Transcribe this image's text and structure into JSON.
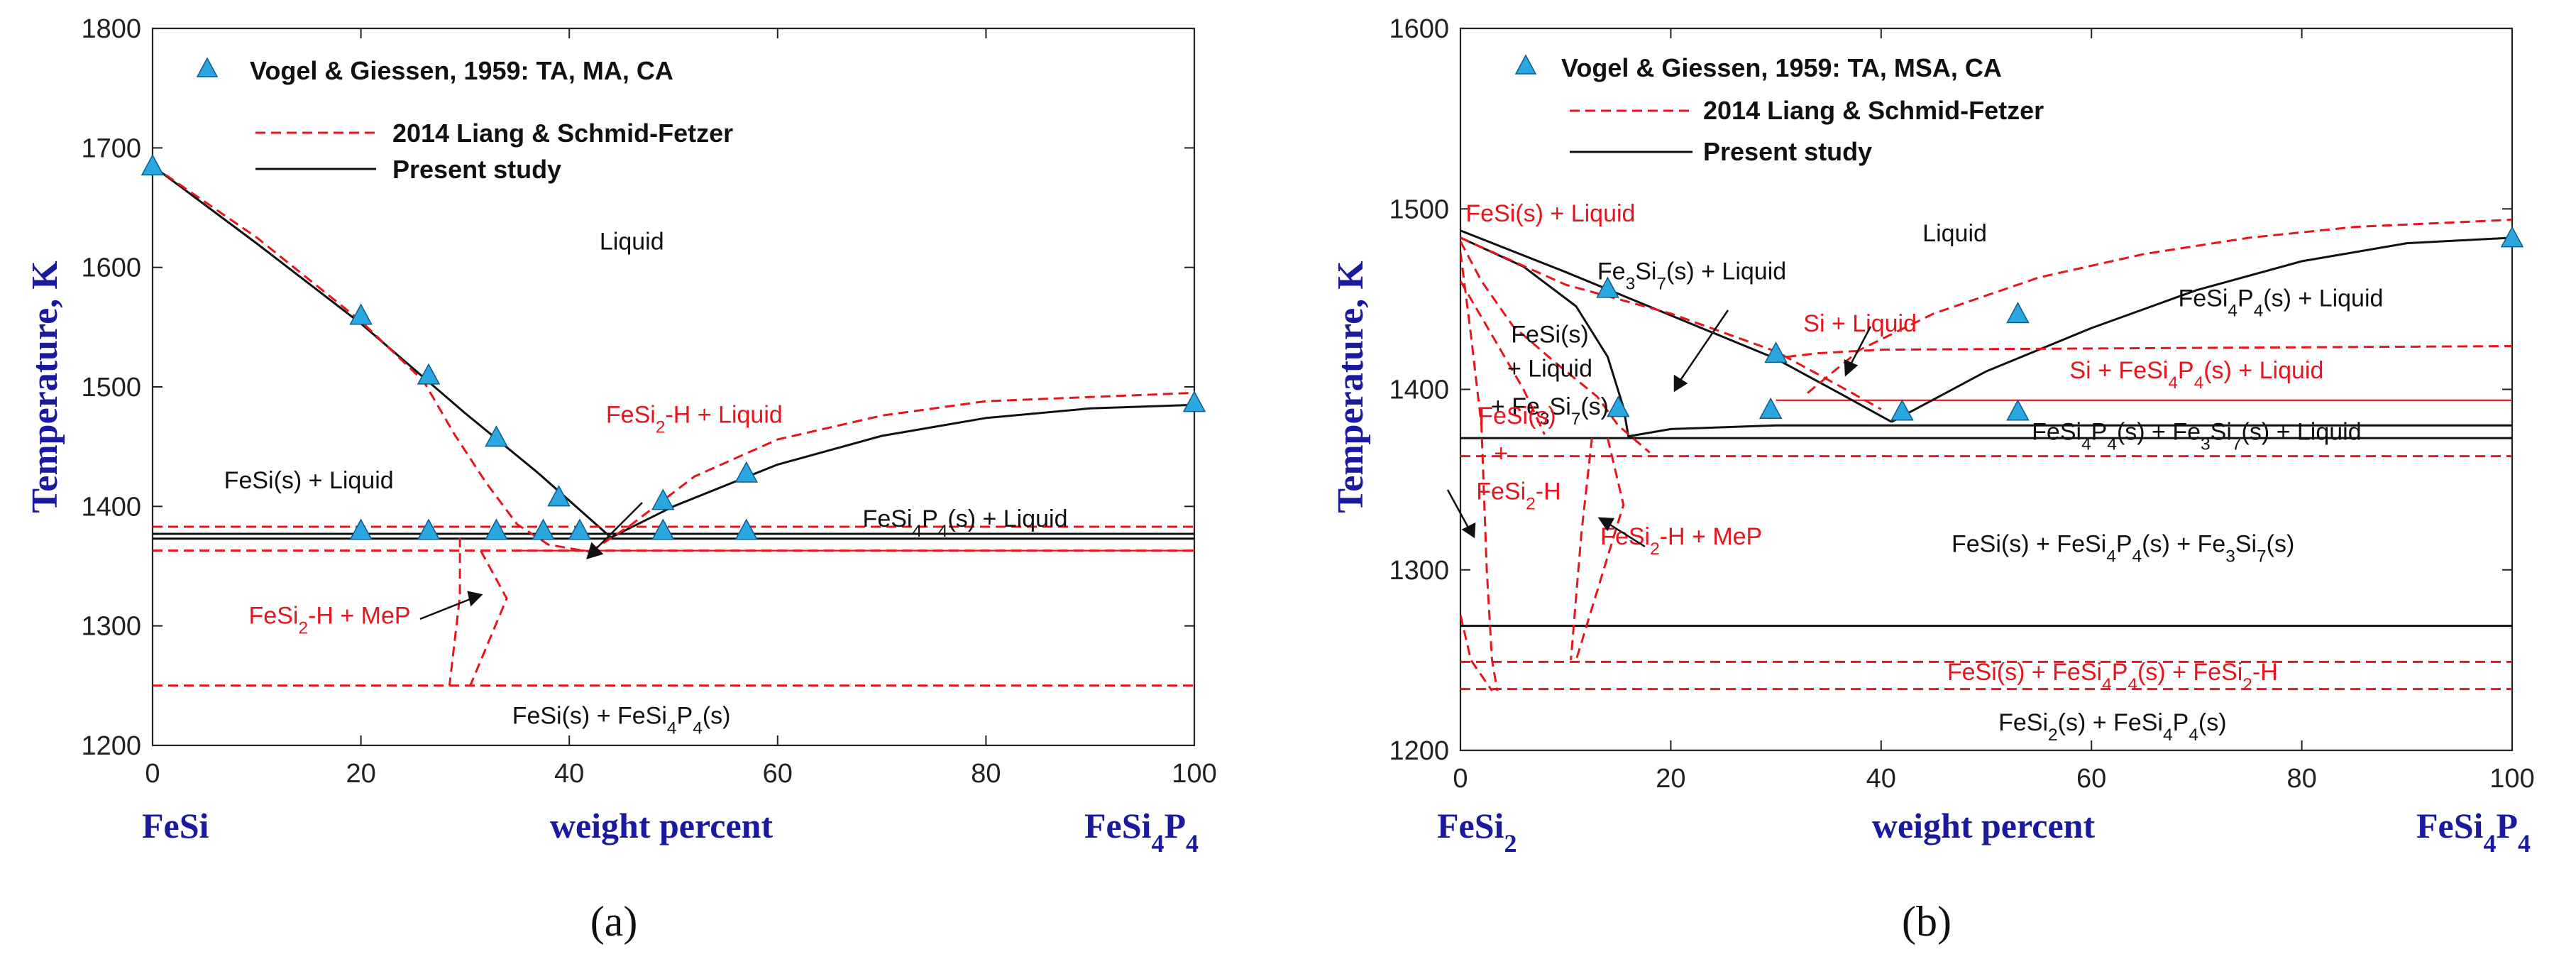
{
  "chart_data": [
    {
      "type": "line",
      "panel_label": "(a)",
      "ylabel": "Temperature, K",
      "xlabel": "weight percent",
      "left_component": "FeSi",
      "right_component": "FeSi4P4",
      "xlim": [
        0,
        100
      ],
      "ylim": [
        1200,
        1800
      ],
      "xticks": [
        0,
        20,
        40,
        60,
        80,
        100
      ],
      "yticks": [
        1200,
        1300,
        1400,
        1500,
        1600,
        1700,
        1800
      ],
      "legend": {
        "placement": "top-left",
        "entries": [
          {
            "label": "Vogel & Giessen, 1959: TA, MA, CA",
            "style": "triangle"
          },
          {
            "label": "2014 Liang & Schmid-Fetzer",
            "style": "red-dashed"
          },
          {
            "label": "Present study",
            "style": "black-solid"
          }
        ]
      },
      "experimental_points": [
        [
          0,
          1685
        ],
        [
          20,
          1560
        ],
        [
          26.5,
          1510
        ],
        [
          33,
          1458
        ],
        [
          39,
          1408
        ],
        [
          49,
          1405
        ],
        [
          57,
          1428
        ],
        [
          20,
          1380
        ],
        [
          26.5,
          1380
        ],
        [
          33,
          1380
        ],
        [
          37.5,
          1380
        ],
        [
          41,
          1380
        ],
        [
          49,
          1380
        ],
        [
          57,
          1380
        ],
        [
          100,
          1487
        ]
      ],
      "series": [
        {
          "name": "Present study",
          "style": "black-solid",
          "segments": [
            [
              [
                0,
                1685
              ],
              [
                10,
                1620
              ],
              [
                20,
                1553
              ],
              [
                30,
                1478
              ],
              [
                37,
                1428
              ],
              [
                44,
                1374
              ]
            ],
            [
              [
                44,
                1374
              ],
              [
                50,
                1400
              ],
              [
                60,
                1435
              ],
              [
                70,
                1459
              ],
              [
                80,
                1474
              ],
              [
                90,
                1482
              ],
              [
                100,
                1485
              ]
            ],
            [
              [
                0,
                1373
              ],
              [
                100,
                1373
              ]
            ],
            [
              [
                0,
                1377
              ],
              [
                100,
                1377
              ]
            ]
          ]
        },
        {
          "name": "2014 Liang & Schmid-Fetzer",
          "style": "red-dashed",
          "segments": [
            [
              [
                0,
                1685
              ],
              [
                10,
                1625
              ],
              [
                20,
                1555
              ],
              [
                26,
                1505
              ],
              [
                29,
                1460
              ],
              [
                32,
                1420
              ],
              [
                35,
                1385
              ],
              [
                38,
                1368
              ],
              [
                42,
                1362
              ]
            ],
            [
              [
                42,
                1362
              ],
              [
                46,
                1385
              ],
              [
                52,
                1425
              ],
              [
                60,
                1456
              ],
              [
                70,
                1476
              ],
              [
                80,
                1488
              ],
              [
                100,
                1495
              ]
            ],
            [
              [
                0,
                1383
              ],
              [
                100,
                1383
              ]
            ],
            [
              [
                0,
                1363
              ],
              [
                100,
                1363
              ]
            ],
            [
              [
                0,
                1250
              ],
              [
                100,
                1250
              ]
            ],
            [
              [
                29.5,
                1374
              ],
              [
                29.5,
                1325
              ],
              [
                28.5,
                1250
              ]
            ],
            [
              [
                31.5,
                1363
              ],
              [
                34,
                1323
              ],
              [
                30.5,
                1250
              ]
            ]
          ]
        }
      ],
      "reference_lines": [
        {
          "style": "red-solid",
          "points": [
            [
              34.5,
              1363
            ],
            [
              100,
              1363
            ]
          ]
        }
      ],
      "annotations": [
        {
          "text": "Liquid",
          "x": 46,
          "y": 1615,
          "color": "#111111"
        },
        {
          "text": "FeSi(s) + Liquid",
          "x": 15,
          "y": 1415,
          "color": "#111111"
        },
        {
          "text": "FeSi4P4(s) + Liquid",
          "x": 78,
          "y": 1383,
          "color": "#111111"
        },
        {
          "text": "FeSi2-H + Liquid",
          "x": 52,
          "y": 1470,
          "color": "#e8141c"
        },
        {
          "text": "FeSi2-H + MeP",
          "x": 17,
          "y": 1302,
          "color": "#e8141c"
        },
        {
          "text": "FeSi(s) + FeSi4P4(s)",
          "x": 45,
          "y": 1218,
          "color": "#111111"
        }
      ]
    },
    {
      "type": "line",
      "panel_label": "(b)",
      "ylabel": "Temperature, K",
      "xlabel": "weight percent",
      "left_component": "FeSi2",
      "right_component": "FeSi4P4",
      "xlim": [
        0,
        100
      ],
      "ylim": [
        1200,
        1600
      ],
      "xticks": [
        0,
        20,
        40,
        60,
        80,
        100
      ],
      "yticks": [
        1200,
        1300,
        1400,
        1500,
        1600
      ],
      "legend": {
        "placement": "top-left",
        "entries": [
          {
            "label": "Vogel & Giessen, 1959: TA, MSA, CA",
            "style": "triangle"
          },
          {
            "label": "2014 Liang & Schmid-Fetzer",
            "style": "red-dashed"
          },
          {
            "label": "Present study",
            "style": "black-solid"
          }
        ]
      },
      "experimental_points": [
        [
          14,
          1456
        ],
        [
          30,
          1420
        ],
        [
          42,
          1388
        ],
        [
          53,
          1442
        ],
        [
          100,
          1484
        ],
        [
          15,
          1390
        ],
        [
          29.5,
          1389
        ],
        [
          53,
          1388
        ]
      ],
      "series": [
        {
          "name": "Present study",
          "style": "black-solid",
          "segments": [
            [
              [
                0,
                1488
              ],
              [
                10,
                1465
              ],
              [
                20,
                1441
              ],
              [
                30,
                1417
              ],
              [
                36,
                1398
              ],
              [
                41,
                1382
              ]
            ],
            [
              [
                41,
                1382
              ],
              [
                50,
                1410
              ],
              [
                60,
                1434
              ],
              [
                70,
                1455
              ],
              [
                80,
                1471
              ],
              [
                90,
                1481
              ],
              [
                100,
                1484
              ]
            ],
            [
              [
                0,
                1484
              ],
              [
                6,
                1468
              ],
              [
                11,
                1446
              ],
              [
                14,
                1418
              ],
              [
                15.5,
                1390
              ],
              [
                16,
                1373
              ]
            ],
            [
              [
                16,
                1374
              ],
              [
                20,
                1378
              ],
              [
                30,
                1380
              ],
              [
                100,
                1380
              ]
            ],
            [
              [
                0,
                1373
              ],
              [
                100,
                1373
              ]
            ],
            [
              [
                0,
                1269
              ],
              [
                100,
                1269
              ]
            ]
          ]
        },
        {
          "name": "2014 Liang & Schmid-Fetzer",
          "style": "red-dashed",
          "segments": [
            [
              [
                0,
                1484
              ],
              [
                5,
                1471
              ],
              [
                10,
                1458
              ],
              [
                20,
                1442
              ],
              [
                30,
                1421
              ],
              [
                36,
                1402
              ],
              [
                40,
                1389
              ]
            ],
            [
              [
                31,
                1418
              ],
              [
                34,
                1420
              ],
              [
                40,
                1422
              ],
              [
                100,
                1424
              ]
            ],
            [
              [
                33,
                1398
              ],
              [
                38,
                1422
              ],
              [
                45,
                1442
              ],
              [
                55,
                1462
              ],
              [
                65,
                1475
              ],
              [
                75,
                1484
              ],
              [
                85,
                1490
              ],
              [
                100,
                1494
              ]
            ],
            [
              [
                0,
                1482
              ],
              [
                2,
                1460
              ],
              [
                5,
                1435
              ],
              [
                9,
                1415
              ],
              [
                13,
                1396
              ],
              [
                15,
                1380
              ],
              [
                18,
                1365
              ]
            ],
            [
              [
                0,
                1476
              ],
              [
                1,
                1430
              ],
              [
                2,
                1380
              ],
              [
                2.5,
                1300
              ],
              [
                3,
                1250
              ],
              [
                3.5,
                1233
              ]
            ],
            [
              [
                0,
                1460
              ],
              [
                3,
                1430
              ],
              [
                6,
                1400
              ],
              [
                8,
                1375
              ]
            ],
            [
              [
                0,
                1275
              ],
              [
                1,
                1250
              ],
              [
                3,
                1233
              ]
            ],
            [
              [
                12.5,
                1373
              ],
              [
                11.5,
                1320
              ],
              [
                10.5,
                1250
              ]
            ],
            [
              [
                14,
                1373
              ],
              [
                15.5,
                1336
              ],
              [
                11,
                1250
              ]
            ],
            [
              [
                0,
                1363
              ],
              [
                100,
                1363
              ]
            ],
            [
              [
                0,
                1249
              ],
              [
                100,
                1249
              ]
            ],
            [
              [
                0,
                1234
              ],
              [
                100,
                1234
              ]
            ]
          ]
        }
      ],
      "reference_lines": [
        {
          "style": "red-solid",
          "points": [
            [
              30,
              1394
            ],
            [
              100,
              1394
            ]
          ]
        }
      ],
      "annotations": [
        {
          "text": "FeSi(s) + Liquid",
          "x": 0.5,
          "y": 1493,
          "color": "#e8141c"
        },
        {
          "text": "Liquid",
          "x": 47,
          "y": 1482,
          "color": "#111111"
        },
        {
          "text": "Fe3Si7(s) + Liquid",
          "x": 22,
          "y": 1461,
          "color": "#111111"
        },
        {
          "text": "Si + Liquid",
          "x": 38,
          "y": 1432,
          "color": "#e8141c"
        },
        {
          "text": "FeSi4P4(s) + Liquid",
          "x": 78,
          "y": 1446,
          "color": "#111111"
        },
        {
          "text": "FeSi(s)",
          "x": 8.5,
          "y": 1426,
          "color": "#111111"
        },
        {
          "text": "+ Liquid",
          "x": 8.5,
          "y": 1407,
          "color": "#111111"
        },
        {
          "text": "+ Fe3Si7(s)",
          "x": 8.5,
          "y": 1386,
          "color": "#111111"
        },
        {
          "text": "Si + FeSi4P4(s) + Liquid",
          "x": 70,
          "y": 1406,
          "color": "#e8141c"
        },
        {
          "text": "FeSi4P4(s) + Fe3Si7(s) + Liquid",
          "x": 70,
          "y": 1372,
          "color": "#111111"
        },
        {
          "text": "FeSi(s)",
          "x": 1.7,
          "y": 1381,
          "color": "#e8141c"
        },
        {
          "text": "+",
          "x": 3.2,
          "y": 1360,
          "color": "#e8141c"
        },
        {
          "text": "FeSi2-H",
          "x": 1.5,
          "y": 1339,
          "color": "#e8141c"
        },
        {
          "text": "FeSi2-H + MeP",
          "x": 21,
          "y": 1314,
          "color": "#e8141c"
        },
        {
          "text": "FeSi(s) + FeSi4P4(s) + Fe3Si7(s)",
          "x": 63,
          "y": 1310,
          "color": "#111111"
        },
        {
          "text": "FeSi(s) + FeSi4P4(s) + FeSi2-H",
          "x": 62,
          "y": 1239,
          "color": "#e8141c"
        },
        {
          "text": "FeSi2(s) + FeSi4P4(s)",
          "x": 62,
          "y": 1211,
          "color": "#111111"
        }
      ]
    }
  ],
  "colors": {
    "marker_fill": "#2aa7e1",
    "marker_stroke": "#0d5d8a",
    "red": "#e8141c",
    "black": "#111111",
    "axis_title": "#1a1aa0"
  }
}
